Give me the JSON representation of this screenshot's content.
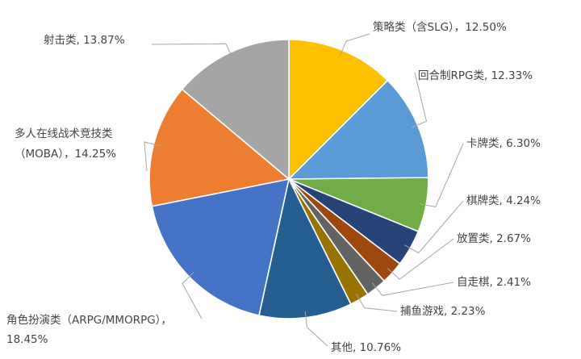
{
  "chart_data": {
    "type": "pie",
    "unit": "%",
    "slices": [
      {
        "label": "策略类（含SLG）",
        "value": 12.5,
        "display": "策略类（含SLG），12.50%",
        "color": "#ffc000"
      },
      {
        "label": "回合制RPG类",
        "value": 12.33,
        "display": "回合制RPG类, 12.33%",
        "color": "#5b9bd5"
      },
      {
        "label": "卡牌类",
        "value": 6.3,
        "display": "卡牌类, 6.30%",
        "color": "#70ad47"
      },
      {
        "label": "棋牌类",
        "value": 4.24,
        "display": "棋牌类, 4.24%",
        "color": "#264478"
      },
      {
        "label": "放置类",
        "value": 2.67,
        "display": "放置类, 2.67%",
        "color": "#9e480e"
      },
      {
        "label": "自走棋",
        "value": 2.41,
        "display": "自走棋, 2.41%",
        "color": "#636363"
      },
      {
        "label": "捕鱼游戏",
        "value": 2.23,
        "display": "捕鱼游戏, 2.23%",
        "color": "#997300"
      },
      {
        "label": "其他",
        "value": 10.76,
        "display": "其他, 10.76%",
        "color": "#255e91"
      },
      {
        "label": "角色扮演类（ARPG/MMORPG）",
        "value": 18.45,
        "display": [
          "角色扮演类（ARPG/MMORPG），",
          "18.45%"
        ],
        "color": "#4472c4"
      },
      {
        "label": "多人在线战术竞技类（MOBA）",
        "value": 14.25,
        "display": [
          "多人在线战术竞技类",
          "（MOBA），14.25%"
        ],
        "color": "#ed7d31"
      },
      {
        "label": "射击类",
        "value": 13.87,
        "display": "射击类, 13.87%",
        "color": "#a5a5a5"
      }
    ],
    "start_angle_deg": 0,
    "direction": "clockwise",
    "legend": "none",
    "data_labels": "outside with leader lines"
  }
}
